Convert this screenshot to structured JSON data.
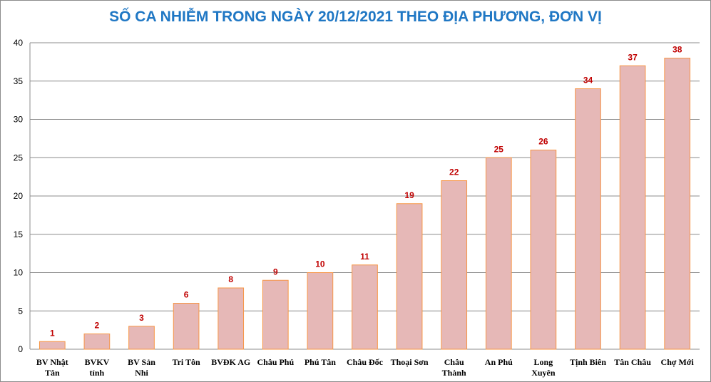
{
  "chart_data": {
    "type": "bar",
    "title": "SỐ CA NHIỄM TRONG NGÀY 20/12/2021 THEO ĐỊA PHƯƠNG, ĐƠN VỊ",
    "xlabel": "",
    "ylabel": "",
    "ylim": [
      0,
      40
    ],
    "yticks": [
      0,
      5,
      10,
      15,
      20,
      25,
      30,
      35,
      40
    ],
    "grid": true,
    "categories": [
      [
        "BV Nhật",
        "Tân"
      ],
      [
        "BVKV",
        "tỉnh"
      ],
      [
        "BV Sản",
        "Nhi"
      ],
      [
        "Tri Tôn"
      ],
      [
        "BVĐK AG"
      ],
      [
        "Châu Phú"
      ],
      [
        "Phú Tân"
      ],
      [
        "Châu Đốc"
      ],
      [
        "Thoại Sơn"
      ],
      [
        "Châu",
        "Thành"
      ],
      [
        "An Phú"
      ],
      [
        "Long",
        "Xuyên"
      ],
      [
        "Tịnh Biên"
      ],
      [
        "Tân Châu"
      ],
      [
        "Chợ Mới"
      ]
    ],
    "values": [
      1,
      2,
      3,
      6,
      8,
      9,
      10,
      11,
      19,
      22,
      25,
      26,
      34,
      37,
      38
    ],
    "colors": {
      "bar_fill": "#e6b8b7",
      "bar_stroke": "#f79646",
      "data_label": "#c00000",
      "grid": "#8c8c8c",
      "title": "#1f77c4"
    }
  }
}
